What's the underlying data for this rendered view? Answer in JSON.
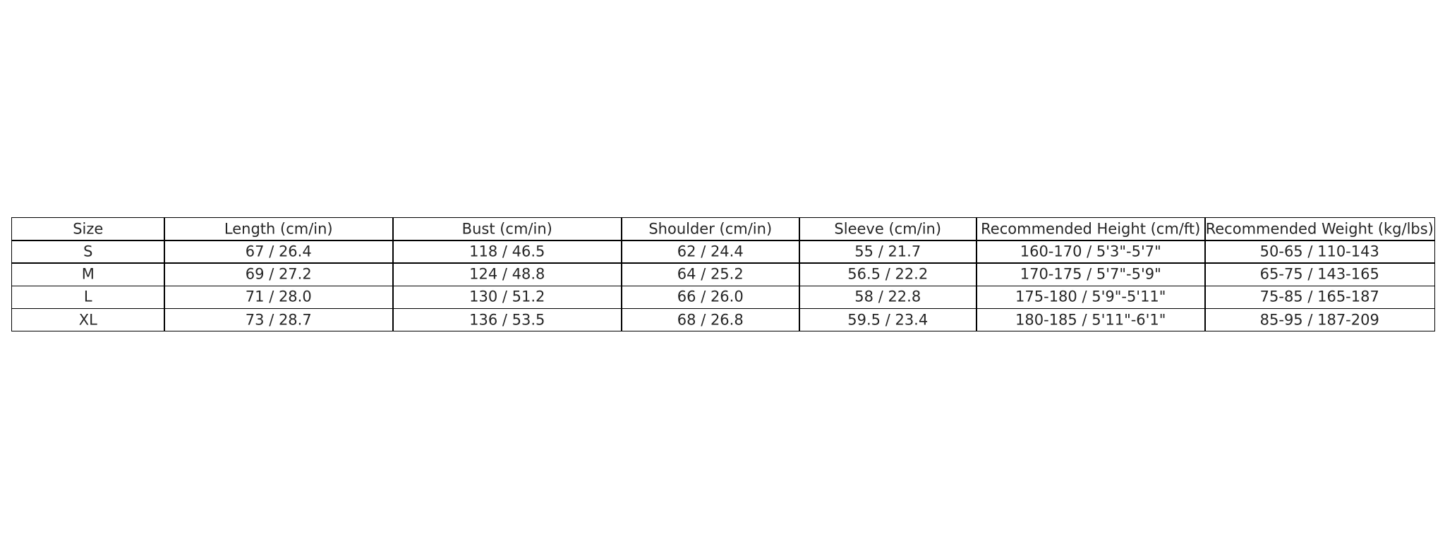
{
  "table": {
    "headers": [
      "Size",
      "Length (cm/in)",
      "Bust (cm/in)",
      "Shoulder (cm/in)",
      "Sleeve (cm/in)",
      "Recommended Height (cm/ft)",
      "Recommended Weight (kg/lbs)"
    ],
    "rows": [
      [
        "S",
        "67 / 26.4",
        "118 / 46.5",
        "62 / 24.4",
        "55 / 21.7",
        "160-170 / 5'3\"-5'7\"",
        "50-65 / 110-143"
      ],
      [
        "M",
        "69 / 27.2",
        "124 / 48.8",
        "64 / 25.2",
        "56.5 / 22.2",
        "170-175 / 5'7\"-5'9\"",
        "65-75 / 143-165"
      ],
      [
        "L",
        "71 / 28.0",
        "130 / 51.2",
        "66 / 26.0",
        "58 / 22.8",
        "175-180 / 5'9\"-5'11\"",
        "75-85 / 165-187"
      ],
      [
        "XL",
        "73 / 28.7",
        "136 / 53.5",
        "68 / 26.8",
        "59.5 / 23.4",
        "180-185 / 5'11\"-6'1\"",
        "85-95 / 187-209"
      ]
    ]
  }
}
